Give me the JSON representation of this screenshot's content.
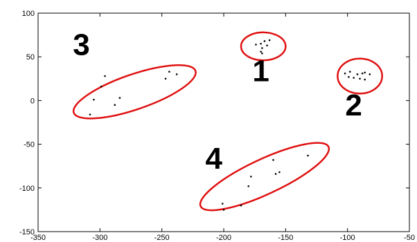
{
  "chart_data": {
    "type": "scatter",
    "xlim": [
      -350,
      -50
    ],
    "ylim": [
      -150,
      100
    ],
    "x_ticks": [
      "-350",
      "-300",
      "-250",
      "-200",
      "-150",
      "-100",
      "-50"
    ],
    "y_ticks": [
      "100",
      "50",
      "0",
      "-50",
      "-100",
      "-150"
    ],
    "grid": false,
    "points": [
      {
        "x": -170,
        "y": 65
      },
      {
        "x": -167,
        "y": 68
      },
      {
        "x": -163,
        "y": 69
      },
      {
        "x": -174,
        "y": 64
      },
      {
        "x": -169,
        "y": 60
      },
      {
        "x": -165,
        "y": 63
      },
      {
        "x": -170,
        "y": 56
      },
      {
        "x": -169,
        "y": 54
      },
      {
        "x": -102,
        "y": 31
      },
      {
        "x": -98,
        "y": 33
      },
      {
        "x": -92,
        "y": 30
      },
      {
        "x": -88,
        "y": 31
      },
      {
        "x": -86,
        "y": 32
      },
      {
        "x": -82,
        "y": 30
      },
      {
        "x": -99,
        "y": 27
      },
      {
        "x": -95,
        "y": 26
      },
      {
        "x": -90,
        "y": 25
      },
      {
        "x": -86,
        "y": 24
      },
      {
        "x": -296,
        "y": 28
      },
      {
        "x": -299,
        "y": 16
      },
      {
        "x": -305,
        "y": 1
      },
      {
        "x": -308,
        "y": -16
      },
      {
        "x": -288,
        "y": -5
      },
      {
        "x": -284,
        "y": 3
      },
      {
        "x": -244,
        "y": 33
      },
      {
        "x": -247,
        "y": 25
      },
      {
        "x": -238,
        "y": 30
      },
      {
        "x": -132,
        "y": -63
      },
      {
        "x": -160,
        "y": -68
      },
      {
        "x": -155,
        "y": -82
      },
      {
        "x": -158,
        "y": -84
      },
      {
        "x": -178,
        "y": -87
      },
      {
        "x": -180,
        "y": -98
      },
      {
        "x": -186,
        "y": -120
      },
      {
        "x": -201,
        "y": -118
      },
      {
        "x": -200,
        "y": -125
      }
    ],
    "ellipses": [
      {
        "cx": -168,
        "cy": 62,
        "rx": 18,
        "ry": 16,
        "rotate": 0,
        "label": "1",
        "label_x": -170,
        "label_y": 22
      },
      {
        "cx": -90,
        "cy": 28,
        "rx": 18,
        "ry": 20,
        "rotate": 0,
        "label": "2",
        "label_x": -95,
        "label_y": -17
      },
      {
        "cx": -272,
        "cy": 10,
        "rx": 52,
        "ry": 20,
        "rotate": -19,
        "label": "3",
        "label_x": -315,
        "label_y": 52
      },
      {
        "cx": -167,
        "cy": -87,
        "rx": 57,
        "ry": 20,
        "rotate": -25,
        "label": "4",
        "label_x": -208,
        "label_y": -78
      }
    ],
    "colors": {
      "ellipse": "#e01010",
      "points": "#000000"
    }
  }
}
